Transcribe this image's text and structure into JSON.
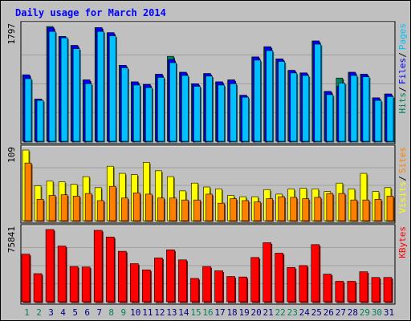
{
  "title": "Daily usage for March 2014",
  "colors": {
    "background": "#c0c0c0",
    "panel": "#c0c0c0",
    "title_text": "#0000ff",
    "hits": "#00805c",
    "files": "#0000ff",
    "pages": "#00c0ff",
    "sites": "#ff8000",
    "visits": "#ffff00",
    "kbytes": "#ff0000",
    "day_weekday": "#000080",
    "day_weekend": "#00805c"
  },
  "chart_data": [
    {
      "type": "bar",
      "panel": "top",
      "max_label": "1797",
      "legend": [
        "Pages",
        "Files",
        "Hits"
      ],
      "legend_separator": "/",
      "categories": [
        "1",
        "2",
        "3",
        "4",
        "5",
        "6",
        "7",
        "8",
        "9",
        "10",
        "11",
        "12",
        "13",
        "14",
        "15",
        "16",
        "17",
        "18",
        "19",
        "20",
        "21",
        "22",
        "23",
        "24",
        "25",
        "26",
        "27",
        "28",
        "29",
        "30",
        "31"
      ],
      "series": [
        {
          "name": "Hits",
          "values": [
            1040,
            660,
            1797,
            1640,
            1500,
            960,
            1780,
            1700,
            1190,
            930,
            890,
            1050,
            1330,
            1080,
            900,
            1060,
            930,
            960,
            720,
            1320,
            1480,
            1290,
            1110,
            1070,
            1570,
            780,
            990,
            1080,
            1050,
            680,
            740
          ]
        },
        {
          "name": "Files",
          "values": [
            1040,
            660,
            1780,
            1640,
            1500,
            960,
            1780,
            1700,
            1190,
            930,
            890,
            1050,
            1280,
            1080,
            900,
            1060,
            930,
            960,
            720,
            1320,
            1480,
            1290,
            1110,
            1070,
            1570,
            780,
            860,
            1080,
            1050,
            680,
            740
          ]
        },
        {
          "name": "Pages",
          "values": [
            980,
            640,
            1720,
            1620,
            1450,
            900,
            1720,
            1650,
            1150,
            880,
            840,
            1000,
            1230,
            1030,
            860,
            1020,
            880,
            900,
            690,
            1270,
            1420,
            1250,
            1070,
            1030,
            1520,
            730,
            910,
            1030,
            1010,
            640,
            700
          ]
        }
      ],
      "ylim": [
        0,
        1797
      ]
    },
    {
      "type": "bar",
      "panel": "middle",
      "max_label": "109",
      "legend": [
        "Sites",
        "Visits"
      ],
      "legend_separator": "/",
      "categories": [
        "1",
        "2",
        "3",
        "4",
        "5",
        "6",
        "7",
        "8",
        "9",
        "10",
        "11",
        "12",
        "13",
        "14",
        "15",
        "16",
        "17",
        "18",
        "19",
        "20",
        "21",
        "22",
        "23",
        "24",
        "25",
        "26",
        "27",
        "28",
        "29",
        "30",
        "31"
      ],
      "series": [
        {
          "name": "Visits",
          "values": [
            109,
            54,
            61,
            60,
            56,
            68,
            51,
            84,
            73,
            71,
            90,
            77,
            68,
            46,
            58,
            52,
            49,
            39,
            37,
            37,
            48,
            41,
            49,
            50,
            49,
            45,
            58,
            49,
            73,
            45,
            51
          ]
        },
        {
          "name": "Sites",
          "values": [
            89,
            33,
            39,
            40,
            38,
            42,
            31,
            53,
            35,
            43,
            41,
            35,
            35,
            32,
            32,
            41,
            27,
            34,
            31,
            29,
            34,
            37,
            36,
            34,
            36,
            42,
            42,
            32,
            32,
            33,
            38
          ]
        }
      ],
      "ylim": [
        0,
        109
      ]
    },
    {
      "type": "bar",
      "panel": "bottom",
      "max_label": "75841",
      "legend": [
        "KBytes"
      ],
      "categories": [
        "1",
        "2",
        "3",
        "4",
        "5",
        "6",
        "7",
        "8",
        "9",
        "10",
        "11",
        "12",
        "13",
        "14",
        "15",
        "16",
        "17",
        "18",
        "19",
        "20",
        "21",
        "22",
        "23",
        "24",
        "25",
        "26",
        "27",
        "28",
        "29",
        "30",
        "31"
      ],
      "series": [
        {
          "name": "KBytes",
          "values": [
            50000,
            29500,
            75841,
            58500,
            37000,
            36500,
            75000,
            68000,
            53000,
            40000,
            33500,
            46000,
            54500,
            44000,
            24500,
            37000,
            32500,
            26500,
            26000,
            46500,
            62000,
            51000,
            36000,
            38000,
            60000,
            29000,
            21500,
            21500,
            31500,
            25500,
            25500
          ]
        }
      ],
      "ylim": [
        0,
        75841
      ]
    }
  ],
  "days": [
    {
      "label": "1",
      "weekend": true
    },
    {
      "label": "2",
      "weekend": true
    },
    {
      "label": "3",
      "weekend": false
    },
    {
      "label": "4",
      "weekend": false
    },
    {
      "label": "5",
      "weekend": false
    },
    {
      "label": "6",
      "weekend": false
    },
    {
      "label": "7",
      "weekend": false
    },
    {
      "label": "8",
      "weekend": true
    },
    {
      "label": "9",
      "weekend": true
    },
    {
      "label": "10",
      "weekend": false
    },
    {
      "label": "11",
      "weekend": false
    },
    {
      "label": "12",
      "weekend": false
    },
    {
      "label": "13",
      "weekend": false
    },
    {
      "label": "14",
      "weekend": false
    },
    {
      "label": "15",
      "weekend": true
    },
    {
      "label": "16",
      "weekend": true
    },
    {
      "label": "17",
      "weekend": false
    },
    {
      "label": "18",
      "weekend": false
    },
    {
      "label": "19",
      "weekend": false
    },
    {
      "label": "20",
      "weekend": false
    },
    {
      "label": "21",
      "weekend": false
    },
    {
      "label": "22",
      "weekend": true
    },
    {
      "label": "23",
      "weekend": true
    },
    {
      "label": "24",
      "weekend": false
    },
    {
      "label": "25",
      "weekend": false
    },
    {
      "label": "26",
      "weekend": false
    },
    {
      "label": "27",
      "weekend": false
    },
    {
      "label": "28",
      "weekend": false
    },
    {
      "label": "29",
      "weekend": true
    },
    {
      "label": "30",
      "weekend": true
    },
    {
      "label": "31",
      "weekend": false
    }
  ]
}
